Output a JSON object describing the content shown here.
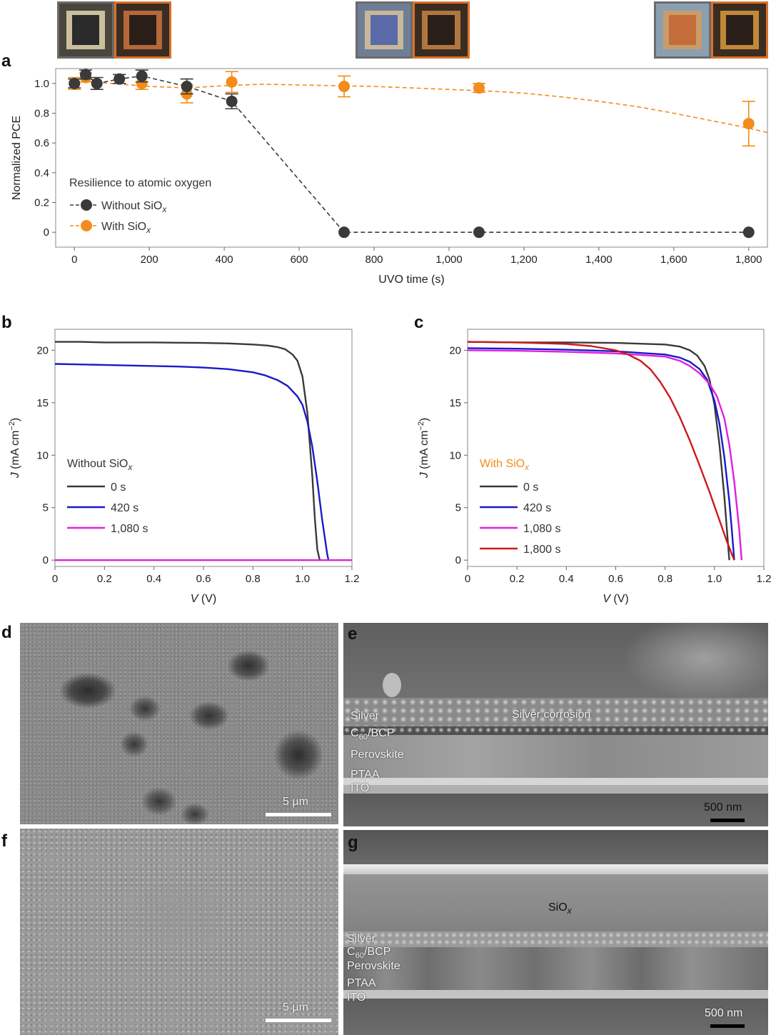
{
  "chart_data": [
    {
      "panel": "a",
      "type": "scatter",
      "xlabel": "UVO time (s)",
      "ylabel": "Normalized PCE",
      "xlim": [
        -50,
        1850
      ],
      "ylim": [
        -0.1,
        1.1
      ],
      "xticks": [
        "0",
        "200",
        "400",
        "600",
        "800",
        "1,000",
        "1,200",
        "1,400",
        "1,600",
        "1,800"
      ],
      "xtick_values": [
        0,
        200,
        400,
        600,
        800,
        1000,
        1200,
        1400,
        1600,
        1800
      ],
      "yticks": [
        "0",
        "0.2",
        "0.4",
        "0.6",
        "0.8",
        "1.0"
      ],
      "ytick_values": [
        0,
        0.2,
        0.4,
        0.6,
        0.8,
        1.0
      ],
      "legend_title": "Resilience to atomic oxygen",
      "legend_placement": "lower-left",
      "series": [
        {
          "name": "Without SiOx",
          "color": "#3a3a3a",
          "line": "dashed",
          "x": [
            0,
            30,
            60,
            120,
            180,
            300,
            420,
            720,
            1080,
            1800
          ],
          "y": [
            1.0,
            1.06,
            1.0,
            1.03,
            1.05,
            0.98,
            0.88,
            0.0,
            0.0,
            0.0
          ],
          "err": [
            0.03,
            0.03,
            0.04,
            0.03,
            0.04,
            0.05,
            0.05,
            0.0,
            0.0,
            0.0
          ]
        },
        {
          "name": "With SiOx",
          "color": "#f28c1c",
          "line": "dashed-fit",
          "x": [
            0,
            30,
            180,
            300,
            420,
            720,
            1080,
            1800
          ],
          "y": [
            1.0,
            1.04,
            1.0,
            0.93,
            1.01,
            0.98,
            0.97,
            0.73
          ],
          "err": [
            0.04,
            0.03,
            0.04,
            0.06,
            0.07,
            0.07,
            0.03,
            0.15
          ]
        }
      ],
      "fit_curve": {
        "series": "With SiOx",
        "x": [
          0,
          100,
          200,
          300,
          400,
          500,
          600,
          700,
          800,
          900,
          1000,
          1100,
          1200,
          1300,
          1400,
          1500,
          1600,
          1700,
          1800,
          1850
        ],
        "y": [
          1.02,
          1.0,
          0.98,
          0.97,
          0.985,
          0.995,
          0.99,
          0.985,
          0.98,
          0.97,
          0.96,
          0.95,
          0.935,
          0.91,
          0.88,
          0.845,
          0.8,
          0.75,
          0.7,
          0.67
        ]
      }
    },
    {
      "panel": "b",
      "type": "line",
      "xlabel": "V (V)",
      "ylabel": "J (mA cm−2)",
      "xlim": [
        0,
        1.2
      ],
      "ylim": [
        -0.6,
        22
      ],
      "xticks": [
        "0",
        "0.2",
        "0.4",
        "0.6",
        "0.8",
        "1.0",
        "1.2"
      ],
      "xtick_values": [
        0,
        0.2,
        0.4,
        0.6,
        0.8,
        1.0,
        1.2
      ],
      "yticks": [
        "0",
        "5",
        "10",
        "15",
        "20"
      ],
      "ytick_values": [
        0,
        5,
        10,
        15,
        20
      ],
      "legend_title": "Without SiOx",
      "legend_placement": "left",
      "series": [
        {
          "name": "0 s",
          "color": "#3a3a3a",
          "x": [
            0,
            0.1,
            0.2,
            0.3,
            0.4,
            0.5,
            0.6,
            0.7,
            0.8,
            0.86,
            0.9,
            0.93,
            0.96,
            0.98,
            1.0,
            1.02,
            1.04,
            1.05,
            1.06,
            1.07
          ],
          "y": [
            20.8,
            20.8,
            20.75,
            20.75,
            20.75,
            20.72,
            20.7,
            20.65,
            20.55,
            20.45,
            20.3,
            20.1,
            19.6,
            19.0,
            17.5,
            14.0,
            8.0,
            4.0,
            1.0,
            0.0
          ]
        },
        {
          "name": "420 s",
          "color": "#1a1ac8",
          "x": [
            0,
            0.1,
            0.2,
            0.3,
            0.4,
            0.5,
            0.6,
            0.7,
            0.8,
            0.85,
            0.9,
            0.94,
            0.98,
            1.0,
            1.02,
            1.04,
            1.06,
            1.08,
            1.1,
            1.105
          ],
          "y": [
            18.7,
            18.65,
            18.6,
            18.55,
            18.5,
            18.45,
            18.35,
            18.2,
            17.9,
            17.6,
            17.15,
            16.6,
            15.6,
            14.8,
            13.2,
            10.8,
            7.5,
            3.8,
            0.6,
            0.0
          ]
        },
        {
          "name": "1,080 s",
          "color": "#e020e0",
          "x": [
            0,
            1.2
          ],
          "y": [
            0,
            0
          ]
        }
      ]
    },
    {
      "panel": "c",
      "type": "line",
      "xlabel": "V (V)",
      "ylabel": "J (mA cm−2)",
      "xlim": [
        0,
        1.2
      ],
      "ylim": [
        -0.6,
        22
      ],
      "xticks": [
        "0",
        "0.2",
        "0.4",
        "0.6",
        "0.8",
        "1.0",
        "1.2"
      ],
      "xtick_values": [
        0,
        0.2,
        0.4,
        0.6,
        0.8,
        1.0,
        1.2
      ],
      "yticks": [
        "0",
        "5",
        "10",
        "15",
        "20"
      ],
      "ytick_values": [
        0,
        5,
        10,
        15,
        20
      ],
      "legend_title": "With SiOx",
      "legend_placement": "left",
      "series": [
        {
          "name": "0 s",
          "color": "#3a3a3a",
          "x": [
            0,
            0.2,
            0.4,
            0.6,
            0.8,
            0.86,
            0.9,
            0.93,
            0.96,
            0.98,
            1.0,
            1.02,
            1.04,
            1.05,
            1.06
          ],
          "y": [
            20.8,
            20.75,
            20.75,
            20.7,
            20.55,
            20.35,
            20.0,
            19.5,
            18.5,
            17.2,
            14.8,
            11.0,
            6.0,
            3.0,
            0.0
          ]
        },
        {
          "name": "420 s",
          "color": "#1a1ac8",
          "x": [
            0,
            0.2,
            0.4,
            0.6,
            0.8,
            0.86,
            0.9,
            0.94,
            0.97,
            1.0,
            1.02,
            1.04,
            1.06,
            1.07,
            1.08
          ],
          "y": [
            20.2,
            20.15,
            20.05,
            19.9,
            19.6,
            19.3,
            18.9,
            18.2,
            17.2,
            15.2,
            13.0,
            9.8,
            5.6,
            3.0,
            0.0
          ]
        },
        {
          "name": "1,080 s",
          "color": "#e020e0",
          "x": [
            0,
            0.2,
            0.4,
            0.6,
            0.8,
            0.86,
            0.9,
            0.94,
            0.98,
            1.01,
            1.04,
            1.06,
            1.08,
            1.1,
            1.11
          ],
          "y": [
            20.0,
            19.95,
            19.85,
            19.7,
            19.4,
            19.0,
            18.5,
            17.8,
            16.8,
            15.6,
            13.5,
            11.0,
            7.5,
            3.0,
            0.0
          ]
        },
        {
          "name": "1,800 s",
          "color": "#cc1a1a",
          "x": [
            0,
            0.2,
            0.4,
            0.5,
            0.6,
            0.65,
            0.7,
            0.74,
            0.78,
            0.82,
            0.86,
            0.9,
            0.94,
            0.98,
            1.02,
            1.05,
            1.07,
            1.08
          ],
          "y": [
            20.8,
            20.75,
            20.6,
            20.4,
            20.0,
            19.6,
            19.0,
            18.2,
            17.0,
            15.5,
            13.6,
            11.4,
            9.0,
            6.5,
            3.8,
            1.8,
            0.6,
            0.0
          ]
        }
      ]
    }
  ],
  "panels": {
    "a": "a",
    "b": "b",
    "c": "c",
    "d": "d",
    "e": "e",
    "f": "f",
    "g": "g"
  },
  "sem": {
    "d_scale": "5 µm",
    "e_scale": "500 nm",
    "f_scale": "5 µm",
    "g_scale": "500 nm",
    "e_layers": [
      "Silver",
      "C60/BCP",
      "Perovskite",
      "PTAA",
      "ITO"
    ],
    "e_annotation": "Silver corrosion",
    "g_layers": [
      "Silver",
      "C60/BCP",
      "Perovskite",
      "PTAA",
      "ITO"
    ],
    "g_annotation": "SiOx"
  },
  "photos": {
    "frame_gray": "#666666",
    "frame_orange": "#d9722a"
  }
}
